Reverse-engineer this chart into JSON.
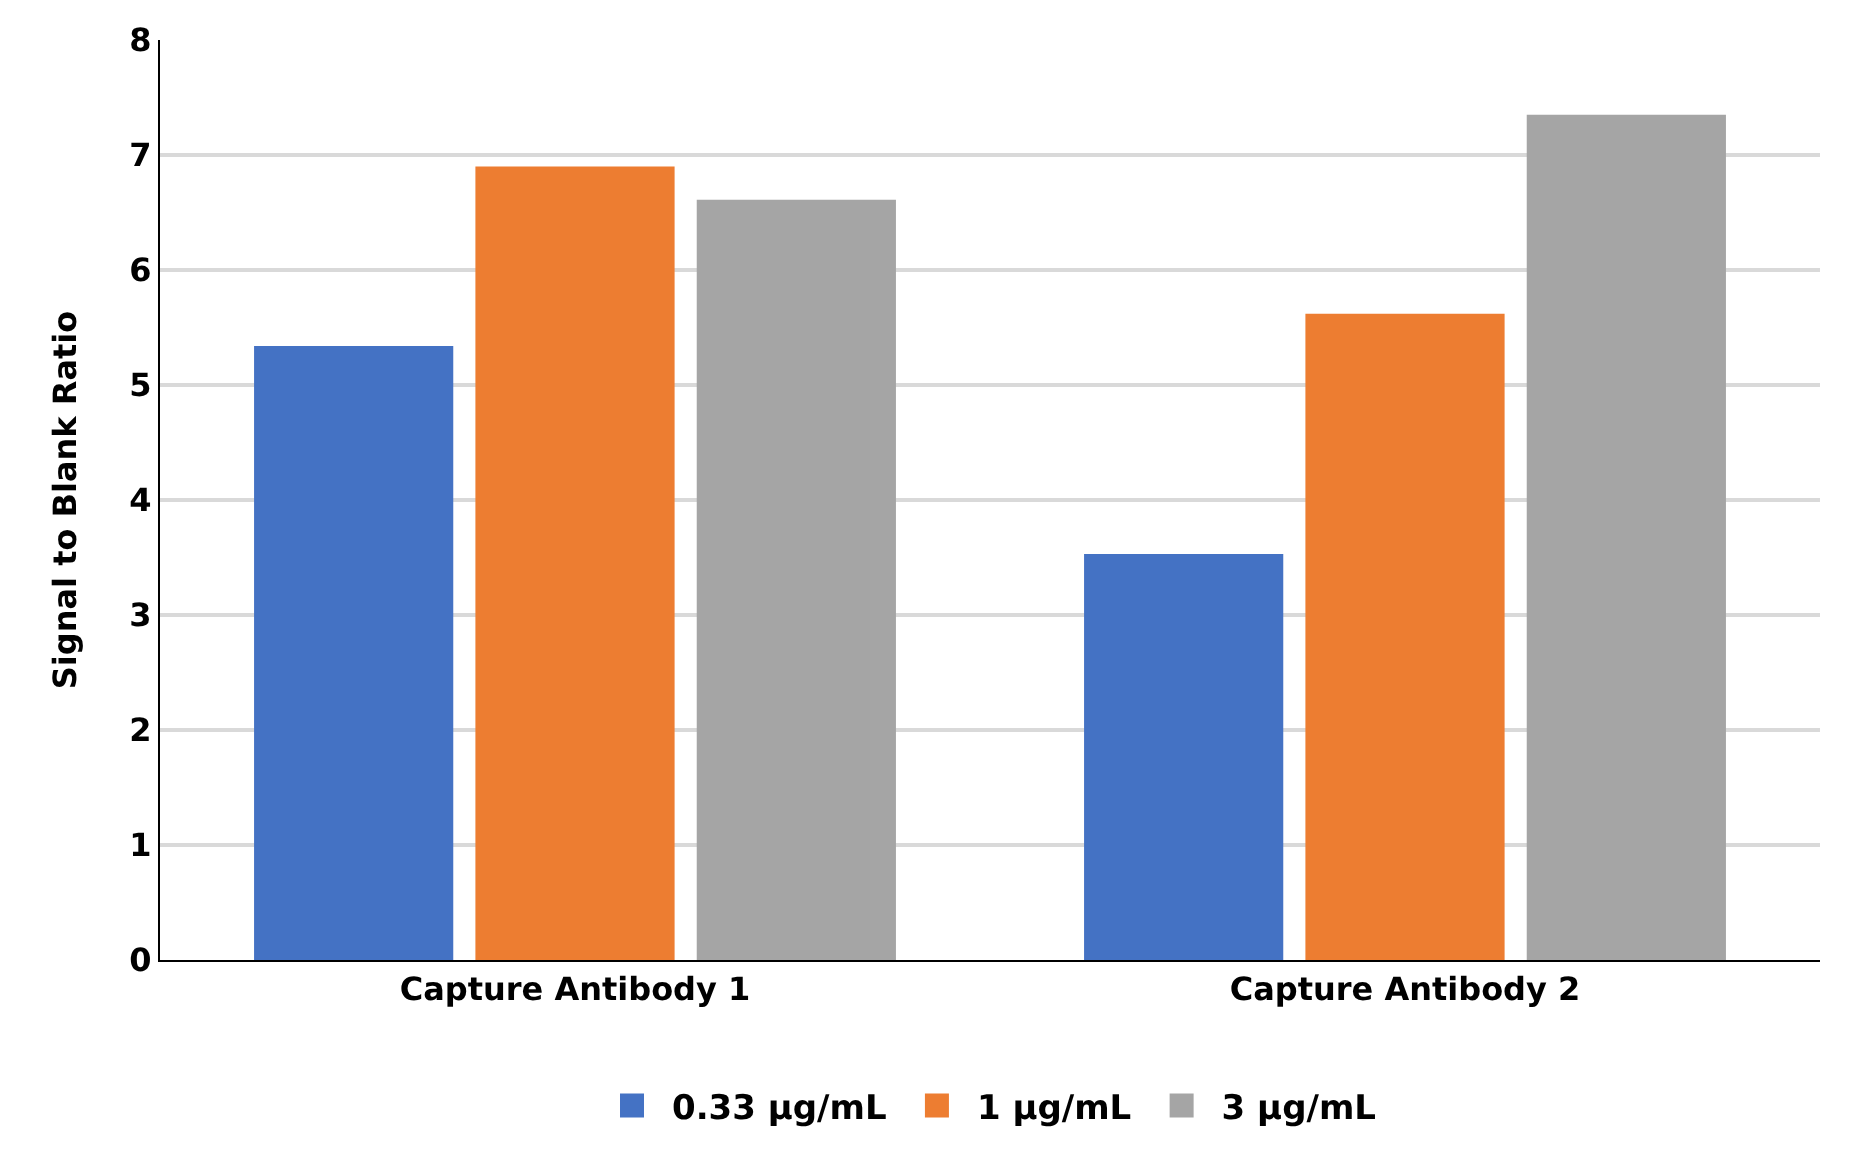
{
  "chart_data": {
    "type": "bar",
    "ylabel": "Signal to Blank Ratio",
    "categories": [
      "Capture Antibody 1",
      "Capture Antibody 2"
    ],
    "series": [
      {
        "name": "0.33 µg/mL",
        "color": "#4472c4",
        "values": [
          5.34,
          3.53
        ]
      },
      {
        "name": "1 µg/mL",
        "color": "#ed7d31",
        "values": [
          6.9,
          5.62
        ]
      },
      {
        "name": "3 µg/mL",
        "color": "#a5a5a5",
        "values": [
          6.61,
          7.35
        ]
      }
    ],
    "ylim": [
      0,
      8
    ],
    "yticks": [
      0,
      1,
      2,
      3,
      4,
      5,
      6,
      7,
      8
    ],
    "grid": "y",
    "legend": "bottom"
  }
}
